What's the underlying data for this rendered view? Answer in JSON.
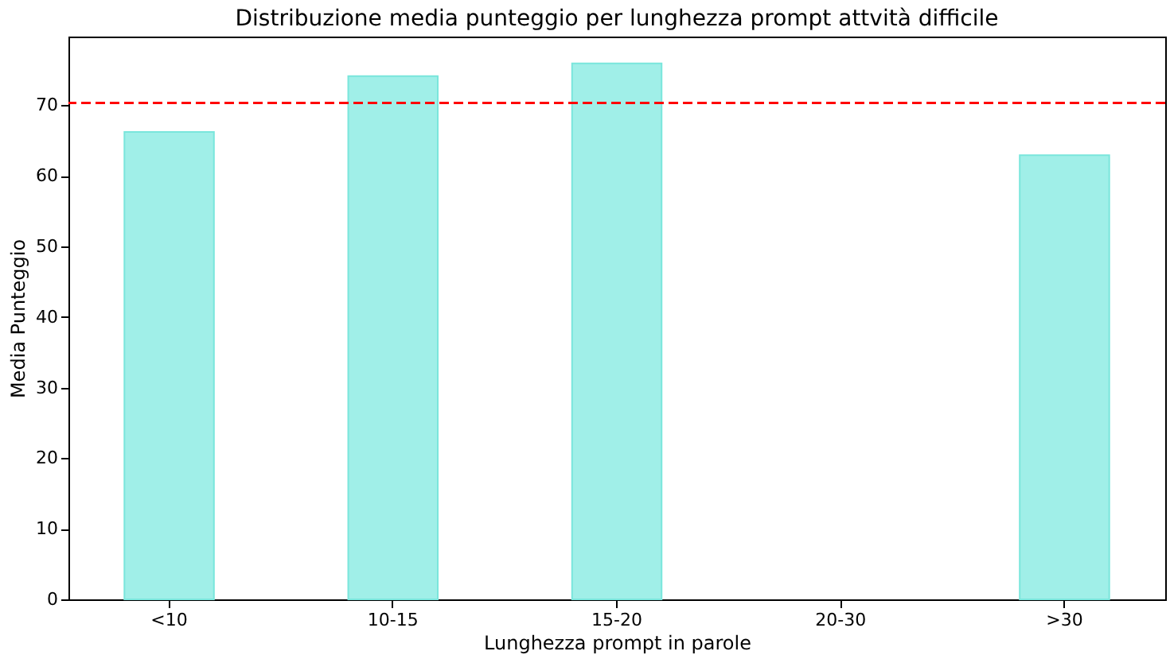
{
  "chart_data": {
    "type": "bar",
    "title": "Distribuzione media punteggio per lunghezza prompt attvità difficile",
    "xlabel": "Lunghezza prompt in parole",
    "ylabel": "Media Punteggio",
    "categories": [
      "<10",
      "10-15",
      "15-20",
      "20-30",
      ">30"
    ],
    "values": [
      66.2,
      74.1,
      75.9,
      null,
      62.9
    ],
    "color": "#a0efe8",
    "ylim": [
      0,
      79.7
    ],
    "yticks": [
      0,
      10,
      20,
      30,
      40,
      50,
      60,
      70
    ],
    "grid": false,
    "ref_lines": [
      {
        "axis": "y",
        "value": 70.3,
        "label": null,
        "color": "#ff0000",
        "line_style": "dashed"
      }
    ]
  }
}
